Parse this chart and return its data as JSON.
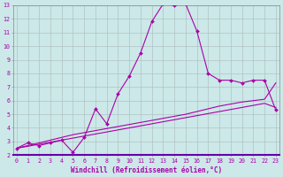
{
  "xlabel": "Windchill (Refroidissement éolien,°C)",
  "bg_color": "#cce8e8",
  "line_color": "#aa00aa",
  "grid_color": "#aabbbb",
  "xmin": 0,
  "xmax": 23,
  "ymin": 2,
  "ymax": 13,
  "x_hours": [
    0,
    1,
    2,
    3,
    4,
    5,
    6,
    7,
    8,
    9,
    10,
    11,
    12,
    13,
    14,
    15,
    16,
    17,
    18,
    19,
    20,
    21,
    22,
    23
  ],
  "y_actual": [
    2.5,
    2.9,
    2.7,
    2.9,
    3.1,
    2.2,
    3.3,
    5.4,
    4.3,
    6.5,
    7.8,
    9.5,
    11.8,
    13.1,
    13.0,
    13.1,
    11.1,
    8.0,
    7.5,
    7.5,
    7.3,
    7.5,
    7.5,
    5.3
  ],
  "y_linear1": [
    2.5,
    2.65,
    2.8,
    2.95,
    3.1,
    3.25,
    3.4,
    3.55,
    3.7,
    3.85,
    4.0,
    4.15,
    4.3,
    4.45,
    4.6,
    4.75,
    4.9,
    5.05,
    5.2,
    5.35,
    5.5,
    5.65,
    5.8,
    5.5
  ],
  "y_linear2": [
    2.5,
    2.7,
    2.9,
    3.1,
    3.3,
    3.5,
    3.65,
    3.8,
    3.95,
    4.1,
    4.25,
    4.4,
    4.55,
    4.7,
    4.85,
    5.0,
    5.2,
    5.4,
    5.6,
    5.75,
    5.9,
    6.0,
    6.1,
    7.3
  ]
}
